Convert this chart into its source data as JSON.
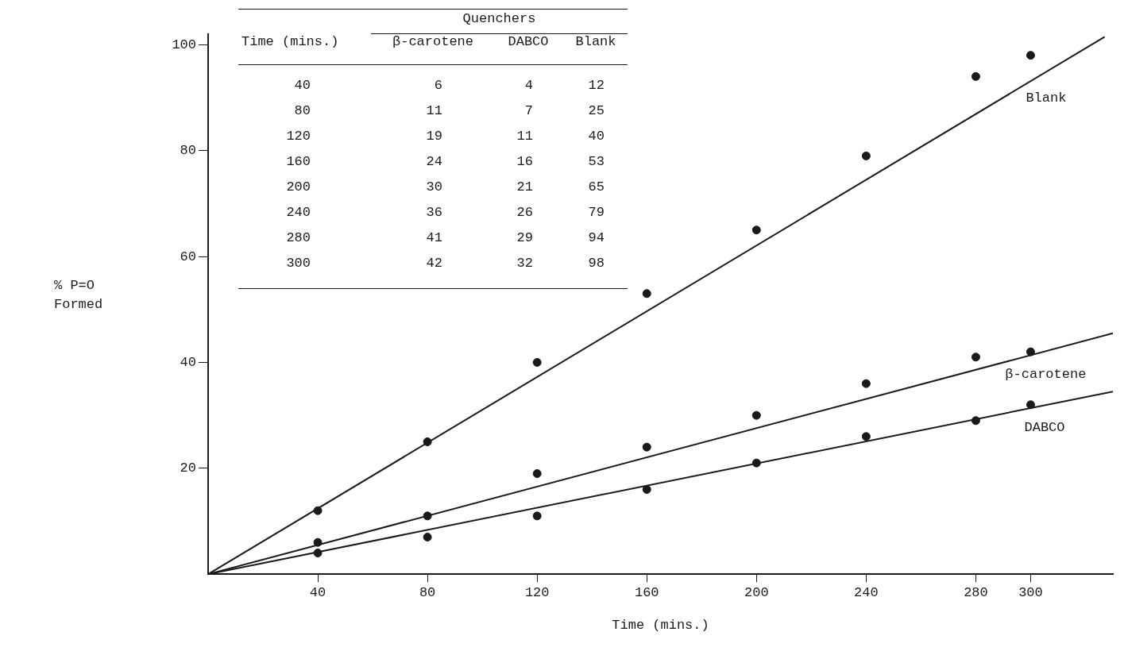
{
  "chart_data": [
    {
      "type": "scatter",
      "xlabel": "Time (mins.)",
      "ylabel": "% P=O Formed",
      "x": [
        40,
        80,
        120,
        160,
        200,
        240,
        280,
        300
      ],
      "xlim": [
        0,
        330
      ],
      "xticks": [
        40,
        80,
        120,
        160,
        200,
        240,
        280,
        300
      ],
      "ylim": [
        0,
        102
      ],
      "yticks": [
        20,
        40,
        60,
        80,
        100
      ],
      "grid": false,
      "legend": false,
      "marker": "circle",
      "series": [
        {
          "color": "#1a1a1a",
          "values": [
            6,
            11,
            19,
            24,
            30,
            36,
            41,
            42
          ]
        },
        {
          "color": "#1a1a1a",
          "values": [
            4,
            7,
            11,
            16,
            21,
            26,
            29,
            32
          ]
        },
        {
          "color": "#1a1a1a",
          "values": [
            12,
            25,
            40,
            53,
            65,
            79,
            94,
            98
          ]
        },
        {
          "name": "β-carotene",
          "type": "line",
          "color": "#1a1a1a",
          "marker": "none",
          "line_style": "solid",
          "x": [
            0,
            330
          ],
          "values": [
            0,
            45.5
          ]
        },
        {
          "name": "DABCO",
          "type": "line",
          "color": "#1a1a1a",
          "marker": "none",
          "line_style": "solid",
          "x": [
            0,
            330
          ],
          "values": [
            0,
            34.5
          ]
        },
        {
          "name": "Blank",
          "type": "line",
          "color": "#1a1a1a",
          "marker": "none",
          "line_style": "solid",
          "x": [
            0,
            327
          ],
          "values": [
            0,
            101.5
          ]
        }
      ]
    },
    {
      "type": "heatmap",
      "xlabel": "Quenchers",
      "ylabel": "Time (mins.)",
      "data_labels": true,
      "categories": [
        "β-carotene",
        "DABCO",
        "Blank"
      ],
      "y_categories": [
        "40",
        "80",
        "120",
        "160",
        "200",
        "240",
        "280",
        "300"
      ],
      "cells": [
        [
          6,
          4,
          12
        ],
        [
          11,
          7,
          25
        ],
        [
          19,
          11,
          40
        ],
        [
          24,
          16,
          53
        ],
        [
          30,
          21,
          65
        ],
        [
          36,
          26,
          79
        ],
        [
          41,
          29,
          94
        ],
        [
          42,
          32,
          98
        ]
      ]
    }
  ]
}
